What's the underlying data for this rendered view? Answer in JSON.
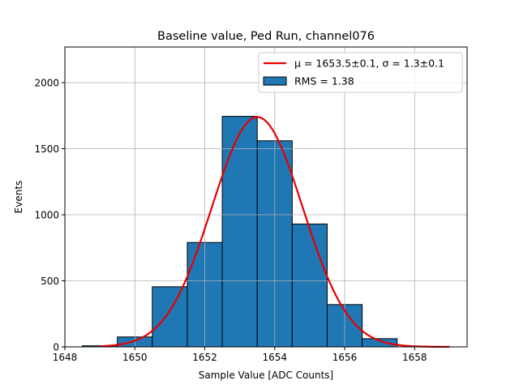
{
  "chart_data": {
    "type": "bar",
    "title": "Baseline value, Ped Run, channel076",
    "xlabel": "Sample Value [ADC Counts]",
    "ylabel": "Events",
    "xlim": [
      1648,
      1659.5
    ],
    "ylim": [
      0,
      2270
    ],
    "xticks": [
      1648,
      1650,
      1652,
      1654,
      1656,
      1658
    ],
    "yticks": [
      0,
      500,
      1000,
      1500,
      2000
    ],
    "grid": true,
    "legend_position": "top-right",
    "bin_width": 1,
    "bins": [
      1648.5,
      1649.5,
      1650.5,
      1651.5,
      1652.5,
      1653.5,
      1654.5,
      1655.5,
      1656.5
    ],
    "values": [
      8,
      75,
      455,
      790,
      1745,
      1560,
      930,
      320,
      62
    ],
    "bar_color": "#1f77b4",
    "fit": {
      "mu": 1653.5,
      "sigma": 1.3,
      "amplitude": 1740,
      "x_range": [
        1649,
        1659
      ],
      "color": "#e80000",
      "label": "μ = 1653.5±0.1, σ = 1.3±0.1"
    },
    "legend": [
      {
        "label": "μ = 1653.5±0.1, σ = 1.3±0.1",
        "kind": "line"
      },
      {
        "label": "RMS = 1.38",
        "kind": "patch"
      }
    ]
  }
}
